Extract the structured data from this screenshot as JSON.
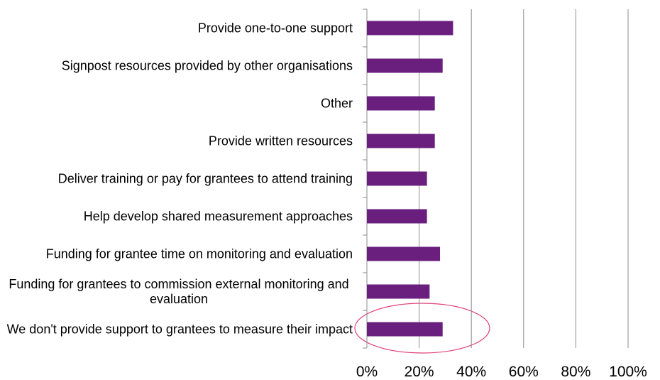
{
  "chart_data": {
    "type": "barh",
    "categories": [
      "Provide one-to-one support",
      "Signpost resources provided by other organisations",
      "Other",
      "Provide written resources",
      "Deliver training or pay for grantees to attend training",
      "Help develop shared measurement approaches",
      "Funding for grantee time on monitoring and evaluation",
      "Funding for grantees to commission external monitoring and evaluation",
      "We don't provide support to grantees to measure their impact"
    ],
    "values": [
      33,
      29,
      26,
      26,
      23,
      23,
      28,
      24,
      29
    ],
    "color": "#6a1f7f",
    "xlim": [
      0,
      100
    ],
    "xticks": [
      {
        "value": 0,
        "label": "0%"
      },
      {
        "value": 20,
        "label": "20%"
      },
      {
        "value": 40,
        "label": "40%"
      },
      {
        "value": 60,
        "label": "60%"
      },
      {
        "value": 80,
        "label": "80%"
      },
      {
        "value": 100,
        "label": "100%"
      }
    ],
    "grid": true
  }
}
